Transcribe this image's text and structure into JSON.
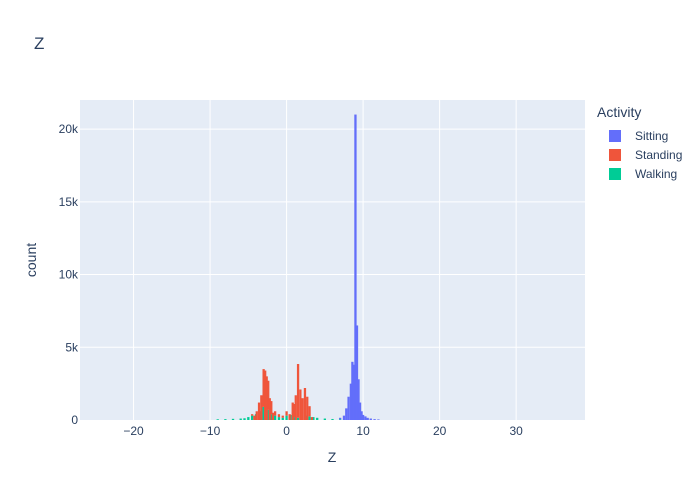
{
  "chart_data": {
    "type": "bar",
    "title": "Z",
    "xlabel": "Z",
    "ylabel": "count",
    "xlim": [
      -27,
      39
    ],
    "ylim": [
      0,
      22000
    ],
    "xticks": [
      -20,
      -10,
      0,
      10,
      20,
      30
    ],
    "xtick_labels": [
      "−20",
      "−10",
      "0",
      "10",
      "20",
      "30"
    ],
    "yticks": [
      0,
      5000,
      10000,
      15000,
      20000
    ],
    "ytick_labels": [
      "0",
      "5k",
      "10k",
      "15k",
      "20k"
    ],
    "grid": true,
    "barmode": "stack",
    "legend": {
      "title": "Activity",
      "position": "right"
    },
    "series": [
      {
        "name": "Walking",
        "color": "#00cc96",
        "x": [
          -9.0,
          -8.0,
          -7.0,
          -6.0,
          -5.5,
          -5.0,
          -4.5,
          -4.0,
          -3.5,
          -3.0,
          -2.7,
          -2.4,
          -2.0,
          -1.5,
          -1.0,
          -0.5,
          0.0,
          0.5,
          1.0,
          1.5,
          2.0,
          2.5,
          3.0,
          3.5,
          4.0,
          5.0,
          6.0,
          7.0
        ],
        "values": [
          50,
          60,
          80,
          100,
          120,
          200,
          300,
          400,
          600,
          900,
          1000,
          700,
          400,
          300,
          200,
          150,
          300,
          350,
          200,
          150,
          200,
          300,
          250,
          200,
          150,
          100,
          70,
          50
        ]
      },
      {
        "name": "Standing",
        "color": "#ef553b",
        "x": [
          -4.5,
          -4.2,
          -3.9,
          -3.6,
          -3.3,
          -3.0,
          -2.8,
          -2.6,
          -2.4,
          -2.2,
          -2.0,
          -1.8,
          -1.5,
          -1.0,
          -0.5,
          0.0,
          0.4,
          0.8,
          1.0,
          1.2,
          1.5,
          1.8,
          2.1,
          2.4,
          2.7,
          3.0,
          3.3
        ],
        "values": [
          100,
          300,
          600,
          1200,
          1700,
          2600,
          3400,
          3000,
          2000,
          1500,
          900,
          500,
          300,
          200,
          150,
          300,
          400,
          1200,
          900,
          1700,
          3700,
          2100,
          1500,
          2200,
          1600,
          700,
          200
        ]
      },
      {
        "name": "Sitting",
        "color": "#636efa",
        "x": [
          7.0,
          7.5,
          7.8,
          8.1,
          8.4,
          8.6,
          8.8,
          9.0,
          9.2,
          9.4,
          9.6,
          9.8,
          10.0,
          10.3,
          10.6,
          11.0,
          11.5,
          12.0
        ],
        "values": [
          100,
          300,
          800,
          1600,
          2500,
          4000,
          3800,
          21000,
          6500,
          2800,
          1200,
          600,
          350,
          250,
          150,
          100,
          60,
          40
        ]
      }
    ]
  }
}
